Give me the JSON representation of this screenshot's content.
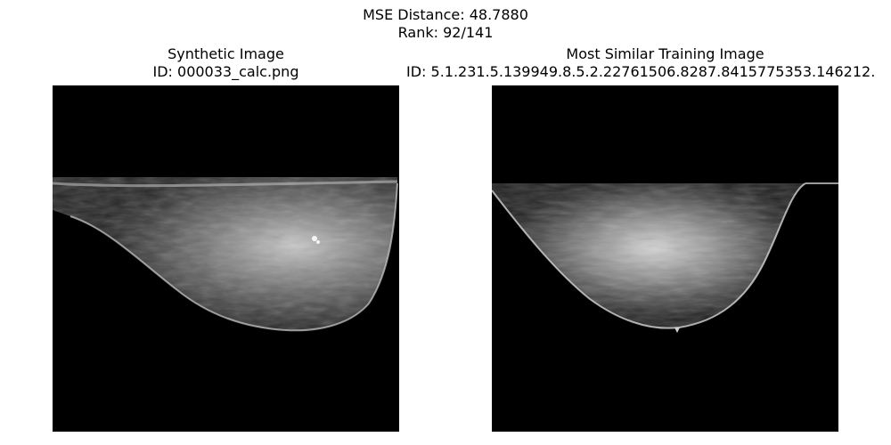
{
  "figure": {
    "suptitle_line1": "MSE Distance: 48.7880",
    "suptitle_line2": "Rank: 92/141"
  },
  "left_panel": {
    "title": "Synthetic Image",
    "id_text": "ID: 000033_calc.png"
  },
  "right_panel": {
    "title": "Most Similar Training Image",
    "id_text": "ID: 5.1.231.5.139949.8.5.2.22761506.8287.8415775353.146212."
  }
}
